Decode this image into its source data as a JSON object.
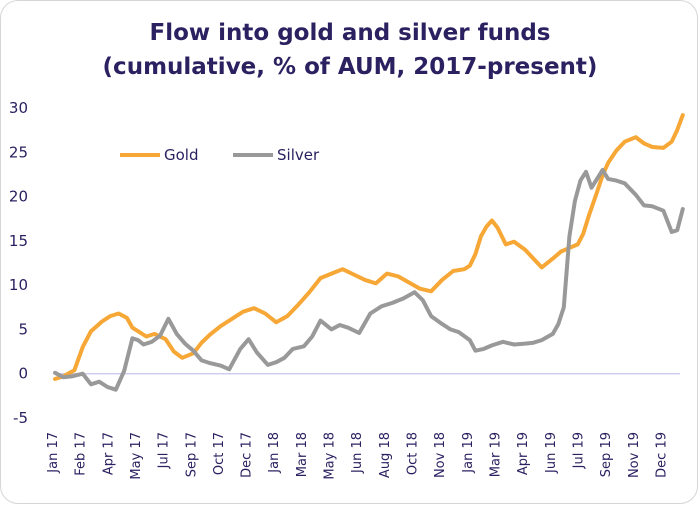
{
  "title_line1": "Flow into gold and silver funds",
  "title_line2": "(cumulative, % of AUM, 2017-present)",
  "chart_data": {
    "type": "line",
    "title": "Flow into gold and silver funds (cumulative, % of AUM, 2017-present)",
    "ylim": [
      -5,
      30
    ],
    "yticks": [
      -5,
      0,
      5,
      10,
      15,
      20,
      25,
      30
    ],
    "xticks": [
      "Jan 17",
      "Feb 17",
      "Apr 17",
      "May 17",
      "Jul 17",
      "Sep 17",
      "Oct 17",
      "Dec 17",
      "Jan 18",
      "Mar 18",
      "May 18",
      "Jun 18",
      "Aug 18",
      "Oct 18",
      "Nov 18",
      "Jan 19",
      "Mar 19",
      "Apr 19",
      "Jun 19",
      "Jul 19",
      "Sep 19",
      "Nov 19",
      "Dec 19"
    ],
    "legend": "top-left",
    "grid": false,
    "zero_line_color": "#c6c4ec",
    "series": [
      {
        "name": "Gold",
        "color": "#f6a735",
        "x": [
          0,
          0.3,
          0.7,
          1.0,
          1.3,
          1.7,
          2.0,
          2.3,
          2.6,
          2.8,
          3.0,
          3.3,
          3.6,
          4.0,
          4.3,
          4.6,
          5.0,
          5.3,
          5.6,
          6.0,
          6.4,
          6.8,
          7.2,
          7.6,
          8.0,
          8.4,
          8.8,
          9.2,
          9.6,
          10.0,
          10.4,
          10.8,
          11.2,
          11.6,
          12.0,
          12.4,
          12.8,
          13.2,
          13.6,
          14.0,
          14.4,
          14.8,
          15.0,
          15.2,
          15.4,
          15.6,
          15.8,
          16.0,
          16.3,
          16.6,
          17.0,
          17.3,
          17.6,
          18.0,
          18.3,
          18.6,
          18.9,
          19.1,
          19.3,
          19.6,
          19.8,
          20.0,
          20.3,
          20.6,
          21.0,
          21.3,
          21.6,
          22.0,
          22.3,
          22.5,
          22.7
        ],
        "values": [
          -0.6,
          -0.3,
          0.4,
          3.0,
          4.8,
          5.9,
          6.5,
          6.8,
          6.3,
          5.2,
          4.8,
          4.2,
          4.5,
          3.9,
          2.5,
          1.8,
          2.3,
          3.5,
          4.4,
          5.4,
          6.2,
          7.0,
          7.4,
          6.8,
          5.8,
          6.5,
          7.8,
          9.2,
          10.8,
          11.3,
          11.8,
          11.2,
          10.6,
          10.2,
          11.3,
          11.0,
          10.3,
          9.6,
          9.3,
          10.6,
          11.6,
          11.8,
          12.2,
          13.5,
          15.5,
          16.6,
          17.3,
          16.5,
          14.6,
          14.9,
          14.0,
          13.0,
          12.0,
          13.0,
          13.8,
          14.2,
          14.6,
          15.8,
          17.8,
          20.5,
          22.4,
          23.8,
          25.2,
          26.2,
          26.7,
          26.0,
          25.6,
          25.5,
          26.2,
          27.5,
          29.2
        ]
      },
      {
        "name": "Silver",
        "color": "#999999",
        "x": [
          0,
          0.3,
          0.6,
          1.0,
          1.3,
          1.6,
          1.9,
          2.2,
          2.5,
          2.8,
          3.0,
          3.2,
          3.5,
          3.8,
          4.1,
          4.4,
          4.7,
          5.0,
          5.3,
          5.6,
          6.0,
          6.3,
          6.7,
          7.0,
          7.3,
          7.7,
          8.0,
          8.3,
          8.6,
          9.0,
          9.3,
          9.6,
          10.0,
          10.3,
          10.6,
          11.0,
          11.4,
          11.8,
          12.2,
          12.6,
          13.0,
          13.3,
          13.6,
          14.0,
          14.3,
          14.6,
          15.0,
          15.2,
          15.5,
          15.8,
          16.2,
          16.6,
          17.0,
          17.3,
          17.6,
          18.0,
          18.2,
          18.4,
          18.6,
          18.8,
          19.0,
          19.2,
          19.4,
          19.6,
          19.8,
          20.0,
          20.3,
          20.6,
          21.0,
          21.3,
          21.6,
          22.0,
          22.3,
          22.5,
          22.7
        ],
        "values": [
          0.1,
          -0.4,
          -0.3,
          0.0,
          -1.2,
          -0.9,
          -1.5,
          -1.8,
          0.3,
          4.0,
          3.8,
          3.3,
          3.6,
          4.3,
          6.2,
          4.5,
          3.4,
          2.6,
          1.5,
          1.2,
          0.9,
          0.5,
          2.8,
          3.9,
          2.4,
          1.0,
          1.3,
          1.8,
          2.8,
          3.1,
          4.2,
          6.0,
          5.0,
          5.5,
          5.2,
          4.6,
          6.8,
          7.6,
          8.0,
          8.5,
          9.2,
          8.3,
          6.5,
          5.6,
          5.0,
          4.7,
          3.8,
          2.6,
          2.8,
          3.2,
          3.6,
          3.3,
          3.4,
          3.5,
          3.8,
          4.5,
          5.6,
          7.5,
          15.5,
          19.5,
          21.8,
          22.8,
          21.0,
          22.0,
          23.0,
          22.0,
          21.8,
          21.5,
          20.2,
          19.0,
          18.9,
          18.4,
          16.0,
          16.2,
          18.6
        ]
      }
    ]
  }
}
